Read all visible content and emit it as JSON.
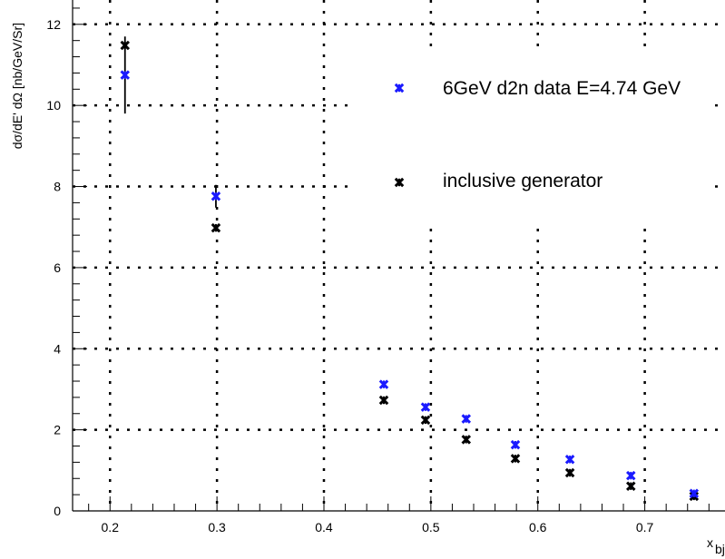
{
  "chart_data": {
    "type": "scatter",
    "xlabel_main": "x",
    "xlabel_sub": "bj",
    "ylabel": "dσ/dE' dΩ [nb/GeV/Sr]",
    "xlim": [
      0.165,
      0.775
    ],
    "ylim": [
      0,
      12.6
    ],
    "x_ticks": [
      0.2,
      0.3,
      0.4,
      0.5,
      0.6,
      0.7
    ],
    "x_tick_labels": [
      "0.2",
      "0.3",
      "0.4",
      "0.5",
      "0.6",
      "0.7"
    ],
    "y_ticks": [
      0,
      2,
      4,
      6,
      8,
      10,
      12
    ],
    "y_tick_labels": [
      "0",
      "2",
      "4",
      "6",
      "8",
      "10",
      "12"
    ],
    "grid": true,
    "legend_position": "top-right",
    "series": [
      {
        "name": "6GeV d2n data E=4.74 GeV",
        "color": "#1a1aff",
        "marker": "x",
        "points": [
          {
            "x": 0.214,
            "y": 10.75,
            "err": 0.95
          },
          {
            "x": 0.299,
            "y": 7.76,
            "err": 0.28
          },
          {
            "x": 0.456,
            "y": 3.12,
            "err": 0.08
          },
          {
            "x": 0.495,
            "y": 2.56,
            "err": 0.07
          },
          {
            "x": 0.533,
            "y": 2.27,
            "err": 0.06
          },
          {
            "x": 0.579,
            "y": 1.63,
            "err": 0.05
          },
          {
            "x": 0.63,
            "y": 1.27,
            "err": 0.05
          },
          {
            "x": 0.687,
            "y": 0.87,
            "err": 0.05
          },
          {
            "x": 0.746,
            "y": 0.43,
            "err": 0.05
          }
        ]
      },
      {
        "name": "inclusive generator",
        "color": "#000000",
        "marker": "x",
        "points": [
          {
            "x": 0.214,
            "y": 11.48
          },
          {
            "x": 0.299,
            "y": 6.98
          },
          {
            "x": 0.456,
            "y": 2.73
          },
          {
            "x": 0.495,
            "y": 2.24
          },
          {
            "x": 0.533,
            "y": 1.76
          },
          {
            "x": 0.579,
            "y": 1.29
          },
          {
            "x": 0.63,
            "y": 0.94
          },
          {
            "x": 0.687,
            "y": 0.61
          },
          {
            "x": 0.746,
            "y": 0.36
          }
        ]
      }
    ]
  }
}
